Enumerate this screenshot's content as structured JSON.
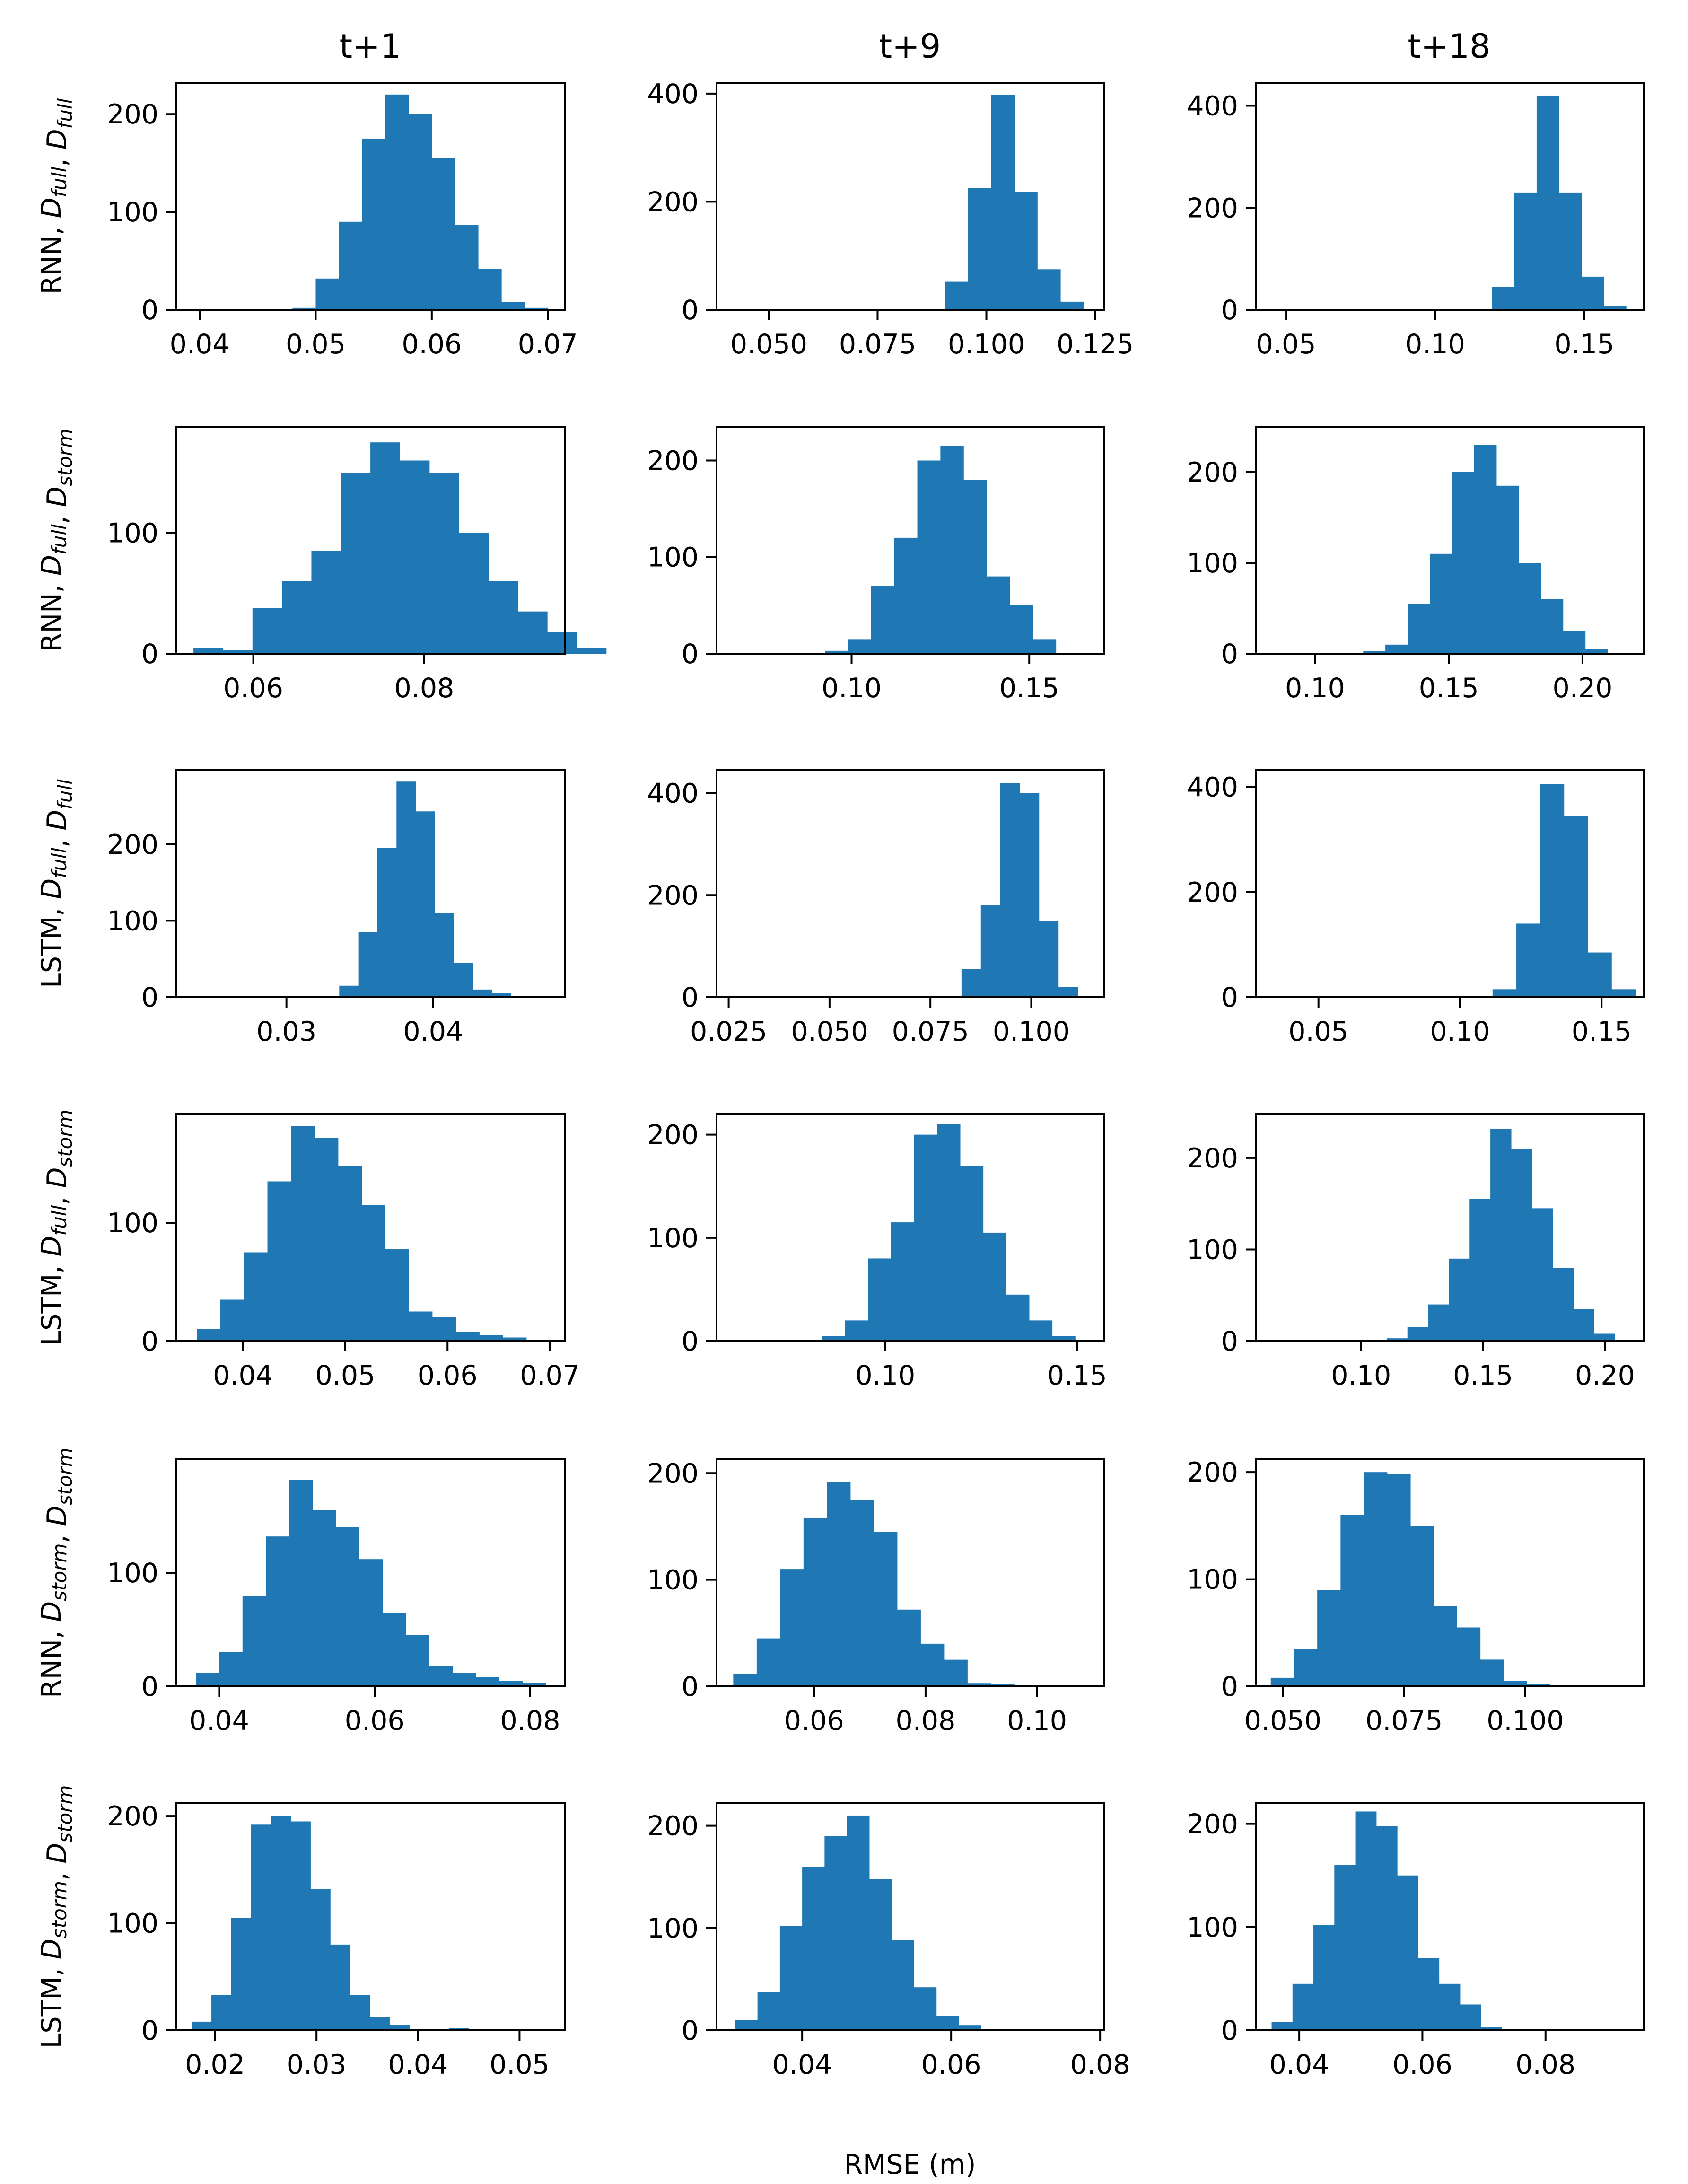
{
  "figure": {
    "column_titles": [
      "t+1",
      "t+9",
      "t+18"
    ],
    "row_labels": [
      {
        "model": "RNN",
        "train": "full",
        "test": "full"
      },
      {
        "model": "RNN",
        "train": "full",
        "test": "storm"
      },
      {
        "model": "LSTM",
        "train": "full",
        "test": "full"
      },
      {
        "model": "LSTM",
        "train": "full",
        "test": "storm"
      },
      {
        "model": "RNN",
        "train": "storm",
        "test": "storm"
      },
      {
        "model": "LSTM",
        "train": "storm",
        "test": "storm"
      }
    ],
    "xlabel": "RMSE (m)",
    "bar_color": "#1f77b4",
    "symbol": "D"
  },
  "chart_data": [
    {
      "type": "bar",
      "title": "t+1",
      "ylabel": "RNN, D_full, D_full",
      "xlim": [
        0.038,
        0.0715
      ],
      "ylim": [
        0,
        232
      ],
      "xticks": [
        0.04,
        0.05,
        0.06,
        0.07
      ],
      "xtick_labels": [
        "0.04",
        "0.05",
        "0.06",
        "0.07"
      ],
      "yticks": [
        0,
        100,
        200
      ],
      "ytick_labels": [
        "0",
        "100",
        "200"
      ],
      "bin_start": 0.048,
      "bin_width": 0.002,
      "values": [
        2,
        32,
        90,
        175,
        220,
        200,
        155,
        87,
        42,
        8,
        2
      ]
    },
    {
      "type": "bar",
      "title": "t+9",
      "ylabel": "RNN, D_full, D_full",
      "xlim": [
        0.038,
        0.127
      ],
      "ylim": [
        0,
        420
      ],
      "xticks": [
        0.05,
        0.075,
        0.1,
        0.125
      ],
      "xtick_labels": [
        "0.050",
        "0.075",
        "0.100",
        "0.125"
      ],
      "yticks": [
        0,
        200,
        400
      ],
      "ytick_labels": [
        "0",
        "200",
        "400"
      ],
      "bin_start": 0.0905,
      "bin_width": 0.0053,
      "values": [
        52,
        225,
        398,
        218,
        75,
        15
      ]
    },
    {
      "type": "bar",
      "title": "t+18",
      "ylabel": "RNN, D_full, D_full",
      "xlim": [
        0.04,
        0.17
      ],
      "ylim": [
        0,
        445
      ],
      "xticks": [
        0.05,
        0.1,
        0.15
      ],
      "xtick_labels": [
        "0.05",
        "0.10",
        "0.15"
      ],
      "yticks": [
        0,
        200,
        400
      ],
      "ytick_labels": [
        "0",
        "200",
        "400"
      ],
      "bin_start": 0.119,
      "bin_width": 0.0075,
      "values": [
        45,
        230,
        420,
        230,
        65,
        8
      ]
    },
    {
      "type": "bar",
      "title": "t+1",
      "ylabel": "RNN, D_full, D_storm",
      "xlim": [
        0.051,
        0.0965
      ],
      "ylim": [
        0,
        188
      ],
      "xticks": [
        0.06,
        0.08
      ],
      "xtick_labels": [
        "0.06",
        "0.08"
      ],
      "yticks": [
        0,
        100
      ],
      "ytick_labels": [
        "0",
        "100"
      ],
      "bin_start": 0.053,
      "bin_width": 0.00345,
      "values": [
        5,
        3,
        38,
        60,
        85,
        150,
        175,
        160,
        150,
        100,
        60,
        35,
        18,
        5
      ]
    },
    {
      "type": "bar",
      "title": "t+9",
      "ylabel": "RNN, D_full, D_storm",
      "xlim": [
        0.062,
        0.171
      ],
      "ylim": [
        0,
        235
      ],
      "xticks": [
        0.1,
        0.15
      ],
      "xtick_labels": [
        "0.10",
        "0.15"
      ],
      "yticks": [
        0,
        100,
        200
      ],
      "ytick_labels": [
        "0",
        "100",
        "200"
      ],
      "bin_start": 0.0925,
      "bin_width": 0.0065,
      "values": [
        3,
        15,
        70,
        120,
        200,
        215,
        180,
        80,
        50,
        15
      ]
    },
    {
      "type": "bar",
      "title": "t+18",
      "ylabel": "RNN, D_full, D_storm",
      "xlim": [
        0.078,
        0.223
      ],
      "ylim": [
        0,
        250
      ],
      "xticks": [
        0.1,
        0.15,
        0.2
      ],
      "xtick_labels": [
        "0.10",
        "0.15",
        "0.20"
      ],
      "yticks": [
        0,
        100,
        200
      ],
      "ytick_labels": [
        "0",
        "100",
        "200"
      ],
      "bin_start": 0.118,
      "bin_width": 0.0083,
      "values": [
        3,
        10,
        55,
        110,
        200,
        230,
        185,
        100,
        60,
        25,
        5
      ]
    },
    {
      "type": "bar",
      "title": "t+1",
      "ylabel": "LSTM, D_full, D_full",
      "xlim": [
        0.0225,
        0.049
      ],
      "ylim": [
        0,
        297
      ],
      "xticks": [
        0.03,
        0.04
      ],
      "xtick_labels": [
        "0.03",
        "0.04"
      ],
      "yticks": [
        0,
        100,
        200
      ],
      "ytick_labels": [
        "0",
        "100",
        "200"
      ],
      "bin_start": 0.0336,
      "bin_width": 0.0013,
      "values": [
        15,
        85,
        195,
        282,
        243,
        110,
        45,
        10,
        5
      ]
    },
    {
      "type": "bar",
      "title": "t+9",
      "ylabel": "LSTM, D_full, D_full",
      "xlim": [
        0.022,
        0.118
      ],
      "ylim": [
        0,
        445
      ],
      "xticks": [
        0.025,
        0.05,
        0.075,
        0.1
      ],
      "xtick_labels": [
        "0.025",
        "0.050",
        "0.075",
        "0.100"
      ],
      "yticks": [
        0,
        200,
        400
      ],
      "ytick_labels": [
        "0",
        "200",
        "400"
      ],
      "bin_start": 0.0827,
      "bin_width": 0.0048,
      "values": [
        55,
        180,
        420,
        400,
        150,
        20
      ]
    },
    {
      "type": "bar",
      "title": "t+18",
      "ylabel": "LSTM, D_full, D_full",
      "xlim": [
        0.028,
        0.165
      ],
      "ylim": [
        0,
        432
      ],
      "xticks": [
        0.05,
        0.1,
        0.15
      ],
      "xtick_labels": [
        "0.05",
        "0.10",
        "0.15"
      ],
      "yticks": [
        0,
        200,
        400
      ],
      "ytick_labels": [
        "0",
        "200",
        "400"
      ],
      "bin_start": 0.1115,
      "bin_width": 0.0084,
      "values": [
        15,
        140,
        405,
        345,
        85,
        15
      ]
    },
    {
      "type": "bar",
      "title": "t+1",
      "ylabel": "LSTM, D_full, D_storm",
      "xlim": [
        0.0335,
        0.0715
      ],
      "ylim": [
        0,
        192
      ],
      "xticks": [
        0.04,
        0.05,
        0.06,
        0.07
      ],
      "xtick_labels": [
        "0.04",
        "0.05",
        "0.06",
        "0.07"
      ],
      "yticks": [
        0,
        100
      ],
      "ytick_labels": [
        "0",
        "100"
      ],
      "bin_start": 0.0355,
      "bin_width": 0.0023,
      "values": [
        10,
        35,
        75,
        135,
        182,
        172,
        148,
        115,
        78,
        25,
        20,
        8,
        5,
        3,
        1
      ]
    },
    {
      "type": "bar",
      "title": "t+9",
      "ylabel": "LSTM, D_full, D_storm",
      "xlim": [
        0.056,
        0.157
      ],
      "ylim": [
        0,
        220
      ],
      "xticks": [
        0.1,
        0.15
      ],
      "xtick_labels": [
        "0.10",
        "0.15"
      ],
      "yticks": [
        0,
        100,
        200
      ],
      "ytick_labels": [
        "0",
        "100",
        "200"
      ],
      "bin_start": 0.0835,
      "bin_width": 0.006,
      "values": [
        5,
        20,
        80,
        115,
        200,
        210,
        170,
        105,
        45,
        20,
        5
      ]
    },
    {
      "type": "bar",
      "title": "t+18",
      "ylabel": "LSTM, D_full, D_storm",
      "xlim": [
        0.057,
        0.216
      ],
      "ylim": [
        0,
        248
      ],
      "xticks": [
        0.1,
        0.15,
        0.2
      ],
      "xtick_labels": [
        "0.10",
        "0.15",
        "0.20"
      ],
      "yticks": [
        0,
        100,
        200
      ],
      "ytick_labels": [
        "0",
        "100",
        "200"
      ],
      "bin_start": 0.1105,
      "bin_width": 0.0085,
      "values": [
        3,
        15,
        40,
        90,
        155,
        232,
        210,
        145,
        80,
        35,
        8
      ]
    },
    {
      "type": "bar",
      "title": "t+1",
      "ylabel": "RNN, D_storm, D_storm",
      "xlim": [
        0.0345,
        0.0845
      ],
      "ylim": [
        0,
        200
      ],
      "xticks": [
        0.04,
        0.06,
        0.08
      ],
      "xtick_labels": [
        "0.04",
        "0.06",
        "0.08"
      ],
      "yticks": [
        0,
        100
      ],
      "ytick_labels": [
        "0",
        "100"
      ],
      "bin_start": 0.037,
      "bin_width": 0.003,
      "values": [
        12,
        30,
        80,
        132,
        182,
        155,
        140,
        112,
        65,
        45,
        18,
        12,
        8,
        5,
        3
      ]
    },
    {
      "type": "bar",
      "title": "t+9",
      "ylabel": "RNN, D_storm, D_storm",
      "xlim": [
        0.0425,
        0.112
      ],
      "ylim": [
        0,
        213
      ],
      "xticks": [
        0.06,
        0.08,
        0.1
      ],
      "xtick_labels": [
        "0.06",
        "0.08",
        "0.10"
      ],
      "yticks": [
        0,
        100,
        200
      ],
      "ytick_labels": [
        "0",
        "100",
        "200"
      ],
      "bin_start": 0.0455,
      "bin_width": 0.0042,
      "values": [
        12,
        45,
        110,
        158,
        192,
        175,
        145,
        72,
        40,
        25,
        3,
        2,
        1
      ]
    },
    {
      "type": "bar",
      "title": "t+18",
      "ylabel": "RNN, D_storm, D_storm",
      "xlim": [
        0.0445,
        0.1245
      ],
      "ylim": [
        0,
        212
      ],
      "xticks": [
        0.05,
        0.075,
        0.1
      ],
      "xtick_labels": [
        "0.050",
        "0.075",
        "0.100"
      ],
      "yticks": [
        0,
        100,
        200
      ],
      "ytick_labels": [
        "0",
        "100",
        "200"
      ],
      "bin_start": 0.0475,
      "bin_width": 0.0048,
      "values": [
        8,
        35,
        90,
        160,
        200,
        198,
        150,
        75,
        55,
        25,
        5,
        2,
        1,
        1
      ]
    },
    {
      "type": "bar",
      "title": "t+1",
      "ylabel": "LSTM, D_storm, D_storm",
      "xlim": [
        0.0162,
        0.0545
      ],
      "ylim": [
        0,
        212
      ],
      "xticks": [
        0.02,
        0.03,
        0.04,
        0.05
      ],
      "xtick_labels": [
        "0.02",
        "0.03",
        "0.04",
        "0.05"
      ],
      "yticks": [
        0,
        100,
        200
      ],
      "ytick_labels": [
        "0",
        "100",
        "200"
      ],
      "bin_start": 0.0177,
      "bin_width": 0.00195,
      "values": [
        8,
        33,
        105,
        192,
        200,
        195,
        132,
        80,
        33,
        12,
        5,
        1,
        1,
        2
      ]
    },
    {
      "type": "bar",
      "title": "t+9",
      "ylabel": "LSTM, D_storm, D_storm",
      "xlim": [
        0.0285,
        0.0805
      ],
      "ylim": [
        0,
        222
      ],
      "xticks": [
        0.04,
        0.06,
        0.08
      ],
      "xtick_labels": [
        "0.04",
        "0.06",
        "0.08"
      ],
      "yticks": [
        0,
        100,
        200
      ],
      "ytick_labels": [
        "0",
        "100",
        "200"
      ],
      "bin_start": 0.031,
      "bin_width": 0.003,
      "values": [
        10,
        37,
        102,
        160,
        190,
        210,
        148,
        88,
        42,
        14,
        5,
        1
      ]
    },
    {
      "type": "bar",
      "title": "t+18",
      "ylabel": "LSTM, D_storm, D_storm",
      "xlim": [
        0.033,
        0.096
      ],
      "ylim": [
        0,
        220
      ],
      "xticks": [
        0.04,
        0.06,
        0.08
      ],
      "xtick_labels": [
        "0.04",
        "0.06",
        "0.08"
      ],
      "yticks": [
        0,
        100,
        200
      ],
      "ytick_labels": [
        "0",
        "100",
        "200"
      ],
      "bin_start": 0.0355,
      "bin_width": 0.0034,
      "values": [
        8,
        45,
        102,
        160,
        212,
        198,
        150,
        70,
        45,
        25,
        3
      ]
    }
  ]
}
